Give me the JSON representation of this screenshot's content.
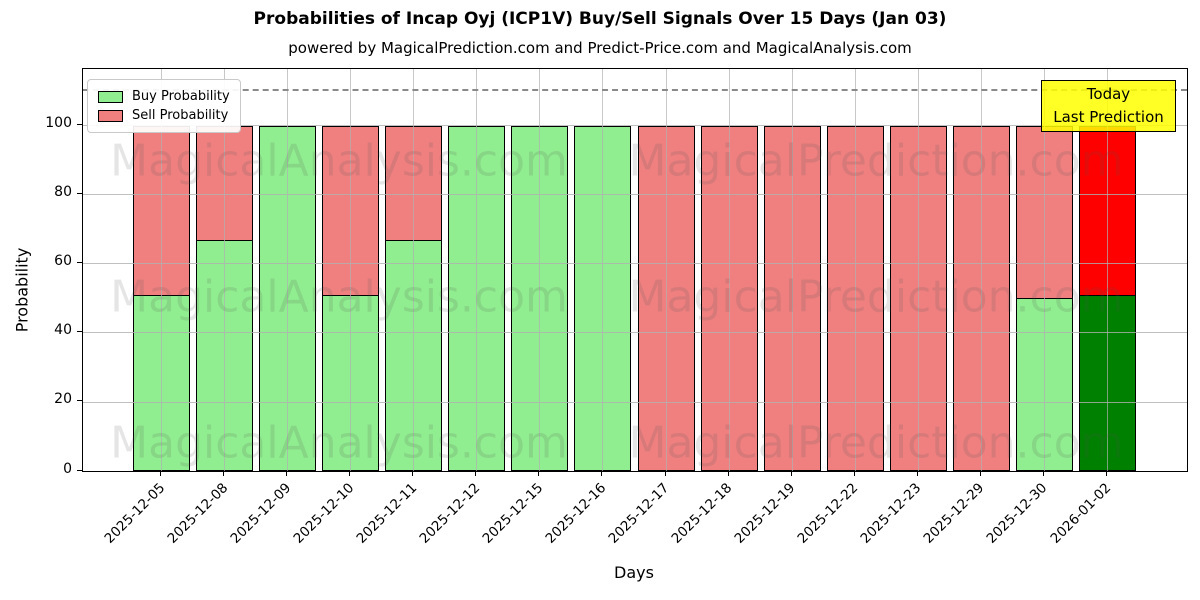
{
  "title": "Probabilities of Incap Oyj (ICP1V) Buy/Sell Signals Over 15 Days (Jan 03)",
  "subtitle": "powered by MagicalPrediction.com and Predict-Price.com and MagicalAnalysis.com",
  "axes": {
    "x_label": "Days",
    "y_label": "Probability",
    "y_ticks": [
      0,
      20,
      40,
      60,
      80,
      100
    ],
    "dashed_line_y": 110
  },
  "legend": {
    "items": [
      {
        "label": "Buy Probability",
        "color": "#90ee90"
      },
      {
        "label": "Sell Probability",
        "color": "#f08080"
      }
    ]
  },
  "annotation": {
    "line1": "Today",
    "line2": "Last Prediction",
    "bg": "#ffff00"
  },
  "watermarks": [
    {
      "text": "MagicalAnalysis.com"
    },
    {
      "text": "MagicalPrediction.com"
    }
  ],
  "chart_data": {
    "type": "bar",
    "stacked": true,
    "title": "Probabilities of Incap Oyj (ICP1V) Buy/Sell Signals Over 15 Days (Jan 03)",
    "xlabel": "Days",
    "ylabel": "Probability",
    "ylim": [
      0,
      116.5
    ],
    "grid": true,
    "legend_position": "upper left",
    "categories": [
      "2025-12-05",
      "2025-12-08",
      "2025-12-09",
      "2025-12-10",
      "2025-12-11",
      "2025-12-12",
      "2025-12-15",
      "2025-12-16",
      "2025-12-17",
      "2025-12-18",
      "2025-12-19",
      "2025-12-22",
      "2025-12-23",
      "2025-12-29",
      "2025-12-30",
      "2026-01-02"
    ],
    "series": [
      {
        "name": "Buy Probability",
        "color": "#90ee90",
        "values": [
          51,
          67,
          100,
          51,
          67,
          100,
          100,
          100,
          0,
          0,
          0,
          0,
          0,
          0,
          50,
          51
        ]
      },
      {
        "name": "Sell Probability",
        "color": "#f08080",
        "values": [
          49,
          33,
          0,
          49,
          33,
          0,
          0,
          0,
          100,
          100,
          100,
          100,
          100,
          100,
          50,
          49
        ]
      }
    ],
    "highlight_last": {
      "buy_color": "#008000",
      "sell_color": "#ff0000"
    },
    "gridline_color": "#b0b0b0",
    "dashed_line_color": "#8a8a8a"
  }
}
